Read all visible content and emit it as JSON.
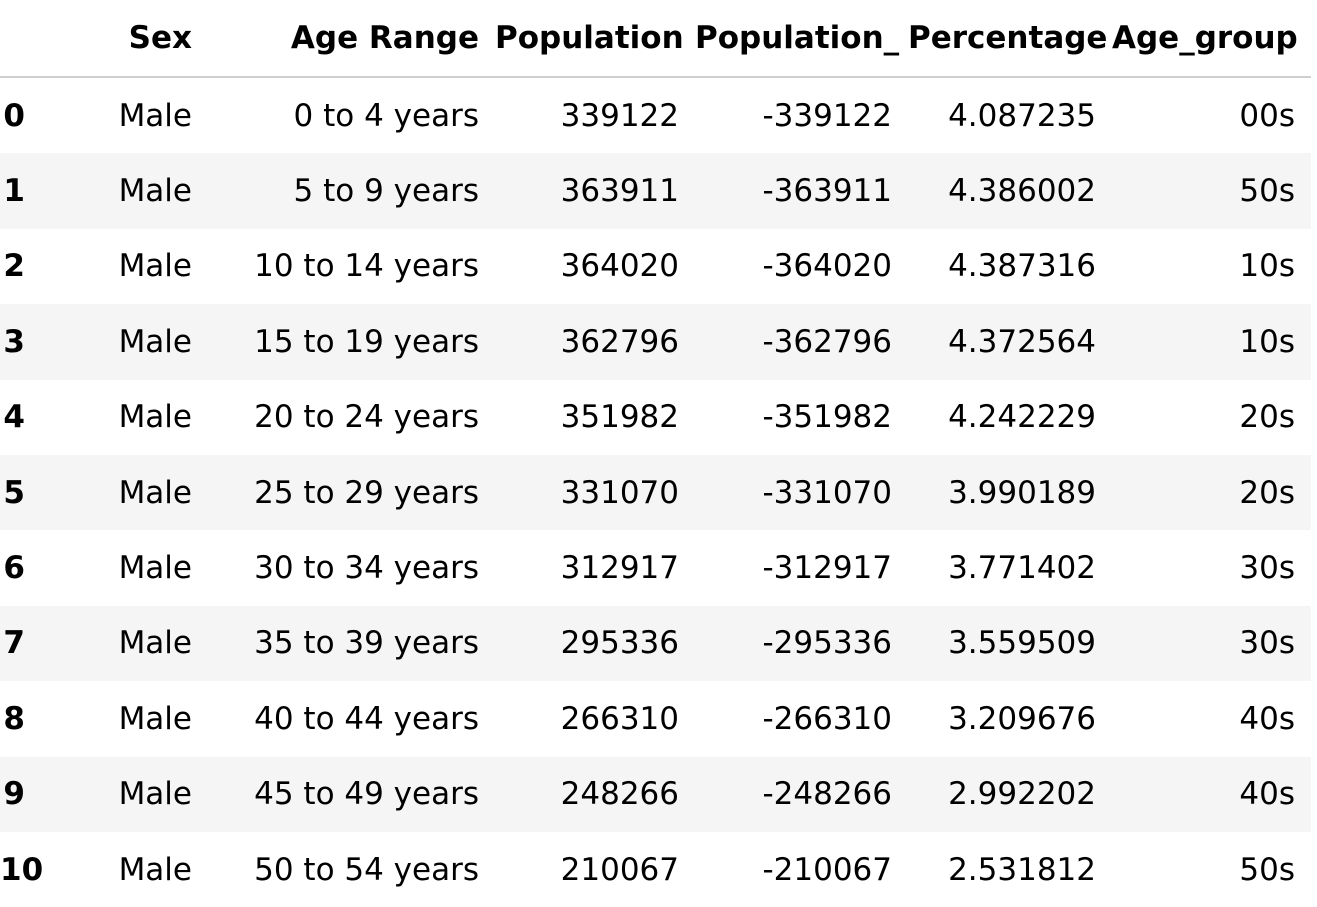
{
  "table": {
    "columns": [
      "",
      "Sex",
      "Age Range",
      "Population",
      "Population_",
      "Percentage",
      "Age_group"
    ],
    "rows": [
      {
        "index": "0",
        "sex": "Male",
        "age_range": "0 to 4 years",
        "population": "339122",
        "population_neg": "-339122",
        "percentage": "4.087235",
        "age_group": "00s"
      },
      {
        "index": "1",
        "sex": "Male",
        "age_range": "5 to 9 years",
        "population": "363911",
        "population_neg": "-363911",
        "percentage": "4.386002",
        "age_group": "50s"
      },
      {
        "index": "2",
        "sex": "Male",
        "age_range": "10 to 14 years",
        "population": "364020",
        "population_neg": "-364020",
        "percentage": "4.387316",
        "age_group": "10s"
      },
      {
        "index": "3",
        "sex": "Male",
        "age_range": "15 to 19 years",
        "population": "362796",
        "population_neg": "-362796",
        "percentage": "4.372564",
        "age_group": "10s"
      },
      {
        "index": "4",
        "sex": "Male",
        "age_range": "20 to 24 years",
        "population": "351982",
        "population_neg": "-351982",
        "percentage": "4.242229",
        "age_group": "20s"
      },
      {
        "index": "5",
        "sex": "Male",
        "age_range": "25 to 29 years",
        "population": "331070",
        "population_neg": "-331070",
        "percentage": "3.990189",
        "age_group": "20s"
      },
      {
        "index": "6",
        "sex": "Male",
        "age_range": "30 to 34 years",
        "population": "312917",
        "population_neg": "-312917",
        "percentage": "3.771402",
        "age_group": "30s"
      },
      {
        "index": "7",
        "sex": "Male",
        "age_range": "35 to 39 years",
        "population": "295336",
        "population_neg": "-295336",
        "percentage": "3.559509",
        "age_group": "30s"
      },
      {
        "index": "8",
        "sex": "Male",
        "age_range": "40 to 44 years",
        "population": "266310",
        "population_neg": "-266310",
        "percentage": "3.209676",
        "age_group": "40s"
      },
      {
        "index": "9",
        "sex": "Male",
        "age_range": "45 to 49 years",
        "population": "248266",
        "population_neg": "-248266",
        "percentage": "2.992202",
        "age_group": "40s"
      },
      {
        "index": "10",
        "sex": "Male",
        "age_range": "50 to 54 years",
        "population": "210067",
        "population_neg": "-210067",
        "percentage": "2.531812",
        "age_group": "50s"
      }
    ]
  },
  "colors": {
    "stripe": "#f5f5f5",
    "header_rule": "#cfcfcf",
    "text": "#000000"
  }
}
